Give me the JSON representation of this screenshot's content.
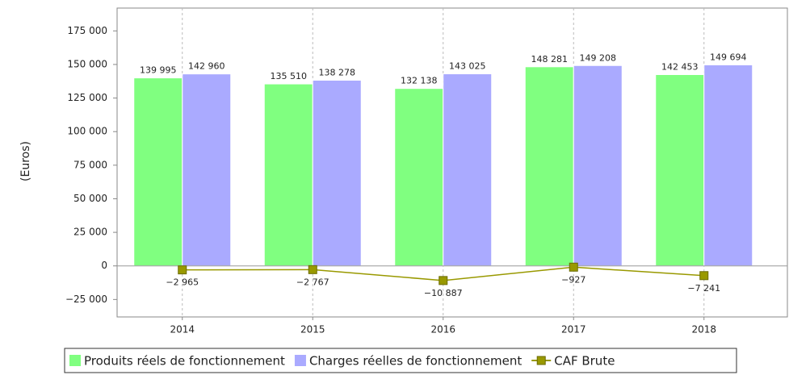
{
  "chart_data": {
    "type": "bar",
    "y_label": "(Euros)",
    "categories": [
      "2014",
      "2015",
      "2016",
      "2017",
      "2018"
    ],
    "series": [
      {
        "name": "Produits réels de fonctionnement",
        "color": "#80ff80",
        "type": "bar",
        "values": [
          139995,
          135510,
          132138,
          148281,
          142453
        ],
        "value_labels": [
          "139 995",
          "135 510",
          "132 138",
          "148 281",
          "142 453"
        ]
      },
      {
        "name": "Charges réelles de fonctionnement",
        "color": "#aaaaff",
        "type": "bar",
        "values": [
          142960,
          138278,
          143025,
          149208,
          149694
        ],
        "value_labels": [
          "142 960",
          "138 278",
          "143 025",
          "149 208",
          "149 694"
        ]
      },
      {
        "name": "CAF Brute",
        "color": "#999900",
        "type": "line",
        "values": [
          -2965,
          -2767,
          -10887,
          -927,
          -7241
        ],
        "value_labels": [
          "−2 965",
          "−2 767",
          "−10 887",
          "−927",
          "−7 241"
        ]
      }
    ],
    "ylim": [
      -38000,
      192000
    ],
    "yticks": [
      {
        "value": -25000,
        "label": "−25 000"
      },
      0,
      {
        "value": 25000,
        "label": "25 000"
      },
      {
        "value": 50000,
        "label": "50 000"
      },
      {
        "value": 75000,
        "label": "75 000"
      },
      {
        "value": 100000,
        "label": "100 000"
      },
      {
        "value": 125000,
        "label": "125 000"
      },
      {
        "value": 150000,
        "label": "150 000"
      },
      {
        "value": 175000,
        "label": "175 000"
      }
    ],
    "grid": "x",
    "legend": "bottom"
  }
}
